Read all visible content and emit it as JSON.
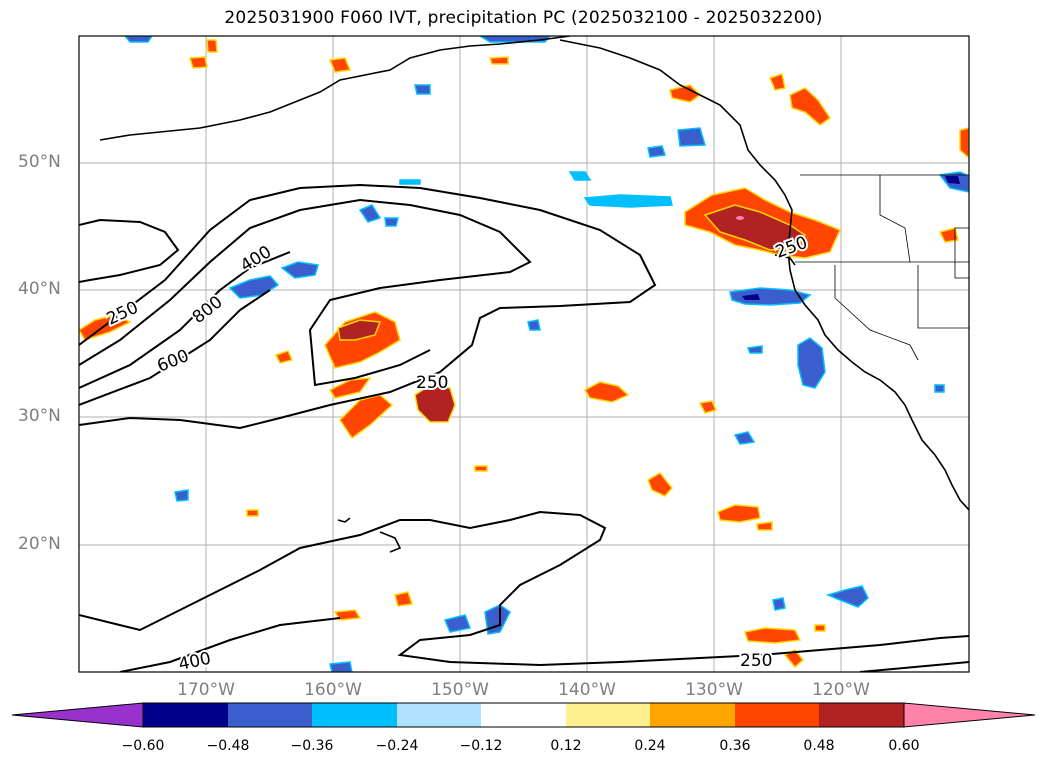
{
  "title": "2025031900 F060 IVT, precipitation PC (2025032100 - 2025032200)",
  "lat_labels": [
    "50°N",
    "40°N",
    "30°N",
    "20°N"
  ],
  "lon_labels": [
    "170°W",
    "160°W",
    "150°W",
    "140°W",
    "130°W",
    "120°W"
  ],
  "contour_labels": [
    "250",
    "400",
    "800",
    "600",
    "250",
    "250",
    "250",
    "400"
  ],
  "colorbar": {
    "ticks": [
      "−0.60",
      "−0.48",
      "−0.36",
      "−0.24",
      "−0.12",
      "0.12",
      "0.24",
      "0.36",
      "0.48",
      "0.60"
    ],
    "colors": [
      "#9932cc",
      "#00008b",
      "#3a5fcd",
      "#00bfff",
      "#b0e2ff",
      "#ffffff",
      "#fff08f",
      "#ffa500",
      "#ff4500",
      "#b22222",
      "#ff82ab"
    ]
  }
}
